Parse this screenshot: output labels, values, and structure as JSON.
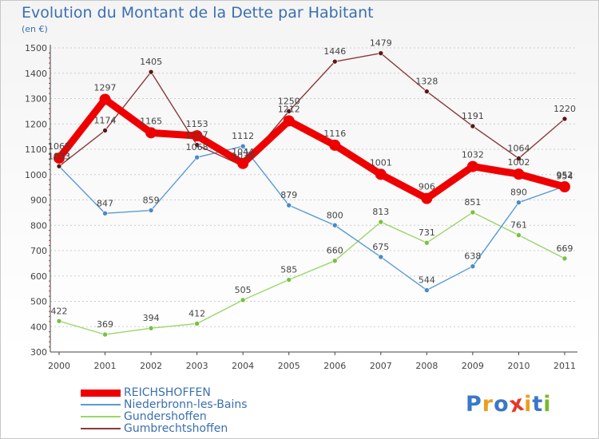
{
  "header": {
    "title": "Evolution du Montant de la Dette par Habitant",
    "unit": "(en €)"
  },
  "logo": {
    "text": "Proxiti",
    "colors": [
      "#3a78c8",
      "#e8a020",
      "#3a78c8",
      "#e33a2a",
      "#e8a020",
      "#3a78c8",
      "#7ab830"
    ]
  },
  "colors": {
    "title": "#3a6fb0",
    "axis": "#444444",
    "grid": "#cccccc"
  },
  "chart_data": {
    "type": "line",
    "title": "Evolution du Montant de la Dette par Habitant",
    "subtitle": "(en €)",
    "xlabel": "",
    "ylabel": "",
    "x": [
      "2000",
      "2001",
      "2002",
      "2003",
      "2004",
      "2005",
      "2006",
      "2007",
      "2008",
      "2009",
      "2010",
      "2011"
    ],
    "ylim": [
      300,
      1500
    ],
    "yticks": [
      300,
      400,
      500,
      600,
      700,
      800,
      900,
      1000,
      1100,
      1200,
      1300,
      1400,
      1500
    ],
    "grid": "horizontal, dashed",
    "legend_position": "bottom-left",
    "series": [
      {
        "name": "Gundershoffen",
        "color": "#9ad668",
        "marker": "#7ac040",
        "width": "thin",
        "values": [
          422,
          369,
          394,
          412,
          505,
          585,
          660,
          813,
          731,
          851,
          761,
          669
        ],
        "labels": [
          "422",
          "369",
          "394",
          "412",
          "505",
          "585",
          "660",
          "813",
          "731",
          "851",
          "761",
          "669"
        ]
      },
      {
        "name": "Niederbronn-les-Bains",
        "color": "#5a9bd5",
        "marker": "#4a8ac8",
        "width": "thin",
        "values": [
          1033,
          847,
          859,
          1068,
          1112,
          879,
          800,
          675,
          544,
          638,
          890,
          954
        ],
        "labels": [
          "1033",
          "847",
          "859",
          "1068",
          "1112",
          "879",
          "800",
          "675",
          "544",
          "638",
          "890",
          "954"
        ]
      },
      {
        "name": "Gumbrechtshoffen",
        "color": "#8a3a3a",
        "marker": "#5a1818",
        "width": "thin",
        "values": [
          1033,
          1174,
          1405,
          1117,
          1034,
          1250,
          1446,
          1479,
          1328,
          1191,
          1064,
          1220
        ],
        "labels": [
          "1033",
          "1174",
          "1405",
          "1117",
          "1034",
          "1250",
          "1446",
          "1479",
          "1328",
          "1191",
          "1064",
          "1220"
        ]
      },
      {
        "name": "REICHSHOFFEN",
        "color": "#ee0000",
        "marker": "#ee0000",
        "width": "thick",
        "values": [
          1065,
          1297,
          1165,
          1153,
          1044,
          1212,
          1116,
          1001,
          906,
          1032,
          1002,
          952
        ],
        "labels": [
          "1065",
          "1297",
          "1165",
          "1153",
          "1044",
          "1212",
          "1116",
          "1001",
          "906",
          "1032",
          "1002",
          "952"
        ]
      }
    ],
    "legend_order": [
      "REICHSHOFFEN",
      "Niederbronn-les-Bains",
      "Gundershoffen",
      "Gumbrechtshoffen"
    ]
  }
}
